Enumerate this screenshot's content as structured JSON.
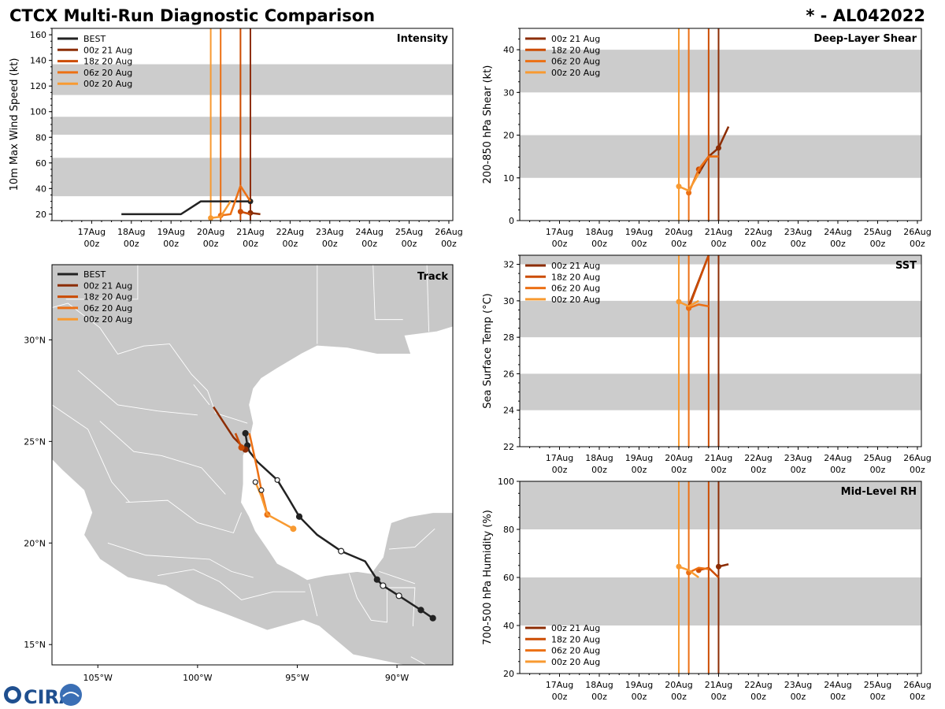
{
  "header": {
    "title": "CTCX Multi-Run Diagnostic Comparison",
    "storm_id": "* - AL042022"
  },
  "colors": {
    "BEST": "#222222",
    "00z 21 Aug": "#8c2d04",
    "18z 20 Aug": "#cc4c02",
    "06z 20 Aug": "#ec7014",
    "00z 20 Aug": "#f89a31",
    "band": "#cccccc",
    "land": "#c8c8c8"
  },
  "time_axis": {
    "tick_dates": [
      "17Aug",
      "18Aug",
      "19Aug",
      "20Aug",
      "21Aug",
      "22Aug",
      "23Aug",
      "24Aug",
      "25Aug",
      "26Aug"
    ],
    "tick_hours": [
      "00z",
      "00z",
      "00z",
      "00z",
      "00z",
      "00z",
      "00z",
      "00z",
      "00z",
      "00z"
    ]
  },
  "legend_runs": [
    "00z 21 Aug",
    "18z 20 Aug",
    "06z 20 Aug",
    "00z 20 Aug"
  ],
  "init_lines": [
    {
      "run": "00z 20 Aug",
      "day": 20.0
    },
    {
      "run": "06z 20 Aug",
      "day": 20.25
    },
    {
      "run": "18z 20 Aug",
      "day": 20.75
    },
    {
      "run": "00z 21 Aug",
      "day": 21.0
    }
  ],
  "logo": {
    "text": "CIRA"
  },
  "chart_data": [
    {
      "id": "intensity",
      "type": "line",
      "title": "Intensity",
      "ylabel": "10m Max Wind Speed (kt)",
      "ylim": [
        15,
        165
      ],
      "yticks": [
        "20",
        "40",
        "60",
        "80",
        "100",
        "120",
        "140",
        "160"
      ],
      "bands": [
        [
          34,
          64
        ],
        [
          82,
          96
        ],
        [
          113,
          137
        ]
      ],
      "legend": [
        "BEST",
        "00z 21 Aug",
        "18z 20 Aug",
        "06z 20 Aug",
        "00z 20 Aug"
      ],
      "series": [
        {
          "name": "BEST",
          "x": [
            17.75,
            19.25,
            19.75,
            20.0,
            21.0
          ],
          "y": [
            20,
            20,
            30,
            30,
            30
          ],
          "end_marker": true
        },
        {
          "name": "00z 21 Aug",
          "x": [
            21.0,
            21.25
          ],
          "y": [
            21,
            20
          ],
          "start_marker": true
        },
        {
          "name": "18z 20 Aug",
          "x": [
            20.75,
            21.0
          ],
          "y": [
            22,
            20
          ],
          "start_marker": true
        },
        {
          "name": "06z 20 Aug",
          "x": [
            20.25,
            20.5,
            20.75,
            21.0
          ],
          "y": [
            19,
            20,
            42,
            30
          ],
          "start_marker": true
        },
        {
          "name": "00z 20 Aug",
          "x": [
            20.0,
            20.25,
            20.5
          ],
          "y": [
            17,
            18,
            30
          ],
          "start_marker": true
        }
      ]
    },
    {
      "id": "shear",
      "type": "line",
      "title": "Deep-Layer Shear",
      "ylabel": "200-850 hPa Shear (kt)",
      "ylim": [
        0,
        45
      ],
      "yticks": [
        "0",
        "10",
        "20",
        "30",
        "40"
      ],
      "bands": [
        [
          10,
          20
        ],
        [
          30,
          40
        ]
      ],
      "legend": [
        "00z 21 Aug",
        "18z 20 Aug",
        "06z 20 Aug",
        "00z 20 Aug"
      ],
      "series": [
        {
          "name": "00z 21 Aug",
          "x": [
            20.5,
            20.75,
            21.0,
            21.25
          ],
          "y": [
            11,
            15,
            17,
            22
          ],
          "start_marker": false,
          "markers_at": [
            21.0
          ]
        },
        {
          "name": "18z 20 Aug",
          "x": [
            20.5,
            20.75,
            21.0
          ],
          "y": [
            12,
            15,
            15
          ],
          "start_marker": true
        },
        {
          "name": "06z 20 Aug",
          "x": [
            20.25,
            20.5,
            20.75,
            21.0
          ],
          "y": [
            6.5,
            12,
            15,
            15
          ],
          "start_marker": true
        },
        {
          "name": "00z 20 Aug",
          "x": [
            20.0,
            20.25,
            20.5
          ],
          "y": [
            8,
            7,
            11
          ],
          "start_marker": true
        }
      ]
    },
    {
      "id": "sst",
      "type": "line",
      "title": "SST",
      "ylabel": "Sea Surface Temp (°C)",
      "ylim": [
        22,
        32.5
      ],
      "yticks": [
        "22",
        "24",
        "26",
        "28",
        "30",
        "32"
      ],
      "bands": [
        [
          24,
          26
        ],
        [
          28,
          30
        ],
        [
          32,
          32.5
        ]
      ],
      "legend": [
        "00z 21 Aug",
        "18z 20 Aug",
        "06z 20 Aug",
        "00z 20 Aug"
      ],
      "series": [
        {
          "name": "00z 21 Aug",
          "x": [
            20.25,
            20.75
          ],
          "y": [
            29.7,
            32.5
          ],
          "start_marker": false
        },
        {
          "name": "18z 20 Aug",
          "x": [
            20.25,
            20.75
          ],
          "y": [
            29.6,
            32.5
          ],
          "start_marker": true
        },
        {
          "name": "06z 20 Aug",
          "x": [
            20.25,
            20.5,
            20.75
          ],
          "y": [
            29.6,
            29.8,
            29.7
          ],
          "start_marker": true
        },
        {
          "name": "00z 20 Aug",
          "x": [
            20.0,
            20.25,
            20.5
          ],
          "y": [
            29.95,
            29.7,
            30.0
          ],
          "start_marker": true
        }
      ]
    },
    {
      "id": "rh",
      "type": "line",
      "title": "Mid-Level RH",
      "ylabel": "700-500 hPa Humidity (%)",
      "ylim": [
        20,
        100
      ],
      "yticks": [
        "20",
        "40",
        "60",
        "80",
        "100"
      ],
      "bands": [
        [
          40,
          60
        ],
        [
          80,
          100
        ]
      ],
      "legend": [
        "00z 21 Aug",
        "18z 20 Aug",
        "06z 20 Aug",
        "00z 20 Aug"
      ],
      "series": [
        {
          "name": "00z 21 Aug",
          "x": [
            21.0,
            21.25
          ],
          "y": [
            64.5,
            65.5
          ],
          "start_marker": true
        },
        {
          "name": "18z 20 Aug",
          "x": [
            20.5,
            20.75,
            21.0
          ],
          "y": [
            63,
            64,
            60
          ],
          "start_marker": true
        },
        {
          "name": "06z 20 Aug",
          "x": [
            20.25,
            20.5,
            20.75
          ],
          "y": [
            62,
            64,
            63.5
          ],
          "start_marker": true
        },
        {
          "name": "00z 20 Aug",
          "x": [
            20.0,
            20.25,
            20.5
          ],
          "y": [
            64.5,
            63,
            60
          ],
          "start_marker": true
        }
      ]
    },
    {
      "id": "track",
      "type": "line",
      "title": "Track",
      "xlim": [
        -107.3,
        -87.2
      ],
      "ylim": [
        14.0,
        33.7
      ],
      "xticks": [
        "105°W",
        "100°W",
        "95°W",
        "90°W"
      ],
      "xtick_values": [
        -105,
        -100,
        -95,
        -90
      ],
      "yticks": [
        "15°N",
        "20°N",
        "25°N",
        "30°N"
      ],
      "ytick_values": [
        15,
        20,
        25,
        30
      ],
      "legend": [
        "BEST",
        "00z 21 Aug",
        "18z 20 Aug",
        "06z 20 Aug",
        "00z 20 Aug"
      ],
      "series": [
        {
          "name": "BEST",
          "lon": [
            -88.2,
            -88.8,
            -89.9,
            -90.7,
            -91.0,
            -91.6,
            -92.8,
            -94.0,
            -94.9,
            -95.5,
            -96.0,
            -97.0,
            -97.4,
            -97.5,
            -97.6
          ],
          "lat": [
            16.3,
            16.7,
            17.4,
            17.9,
            18.2,
            19.1,
            19.6,
            20.4,
            21.3,
            22.3,
            23.1,
            24.0,
            24.5,
            24.8,
            25.4
          ],
          "filled": [
            true,
            true,
            false,
            false,
            true,
            false,
            false,
            false,
            true,
            false,
            false,
            false,
            false,
            true,
            true
          ]
        },
        {
          "name": "00z 21 Aug",
          "lon": [
            -97.6,
            -98.2,
            -99.2
          ],
          "lat": [
            24.6,
            25.2,
            26.7
          ]
        },
        {
          "name": "18z 20 Aug",
          "lon": [
            -97.8,
            -98.1
          ],
          "lat": [
            24.7,
            25.4
          ]
        },
        {
          "name": "06z 20 Aug",
          "lon": [
            -96.5,
            -96.8,
            -97.0,
            -97.4
          ],
          "lat": [
            21.4,
            22.6,
            23.6,
            25.4
          ]
        },
        {
          "name": "00z 20 Aug",
          "lon": [
            -95.2,
            -96.5,
            -96.8,
            -97.1
          ],
          "lat": [
            20.7,
            21.4,
            22.3,
            23.0
          ]
        }
      ]
    }
  ]
}
